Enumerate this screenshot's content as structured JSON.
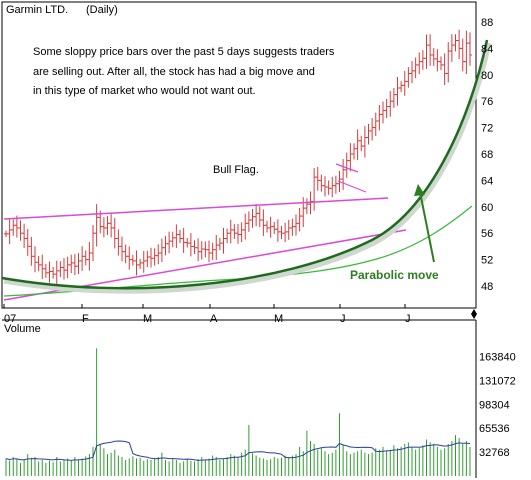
{
  "chart_data": {
    "type": "bar",
    "title": "Garmin LTD.",
    "subtitle": "(Daily)",
    "x_months": [
      "07",
      "F",
      "M",
      "A",
      "M",
      "J",
      "J"
    ],
    "price_ticks": [
      48,
      52,
      56,
      60,
      64,
      68,
      72,
      76,
      80,
      84,
      88
    ],
    "price_ylim": [
      45,
      89
    ],
    "volume_label": "Volume",
    "volume_ticks": [
      32768,
      65536,
      98304,
      131072,
      163840
    ],
    "volume_ylim": [
      0,
      196000
    ],
    "grid": false,
    "annotations": {
      "note_lines": [
        "Some sloppy price bars over the past 5 days suggests traders",
        "are selling out. After all, the stock has had a big move and",
        "in this type of market who would not want out."
      ],
      "bull_flag": "Bull Flag.",
      "parabolic": "Parabolic move"
    },
    "price_bars": [
      55.9,
      56.5,
      57.2,
      56.8,
      56.0,
      55.2,
      54.0,
      52.5,
      51.6,
      51.2,
      50.6,
      50.0,
      50.2,
      49.8,
      50.3,
      50.8,
      50.4,
      51.2,
      51.5,
      51.0,
      51.8,
      52.5,
      52.0,
      53.0,
      56.0,
      58.4,
      57.0,
      56.8,
      57.5,
      56.8,
      55.2,
      54.0,
      53.2,
      52.5,
      52.0,
      51.8,
      51.2,
      51.5,
      51.8,
      52.4,
      52.2,
      52.6,
      53.0,
      53.8,
      54.4,
      54.8,
      55.3,
      55.8,
      55.2,
      54.6,
      54.5,
      54.0,
      53.8,
      53.2,
      53.6,
      53.5,
      53.0,
      53.5,
      54.2,
      54.5,
      55.2,
      56.0,
      56.5,
      56.0,
      55.8,
      56.5,
      57.5,
      58.0,
      58.5,
      59.0,
      58.0,
      57.2,
      56.8,
      57.0,
      56.6,
      56.2,
      56.0,
      56.2,
      56.8,
      57.0,
      57.5,
      58.6,
      59.8,
      60.4,
      60.8,
      64.5,
      64.0,
      63.2,
      63.0,
      62.8,
      63.2,
      63.5,
      64.2,
      65.6,
      67.0,
      68.0,
      68.8,
      70.0,
      69.2,
      70.5,
      71.5,
      72.0,
      73.0,
      74.0,
      74.6,
      75.2,
      76.0,
      77.0,
      78.0,
      78.4,
      79.0,
      80.2,
      80.6,
      81.5,
      82.0,
      82.5,
      84.5,
      83.0,
      82.4,
      82.0,
      81.5,
      80.2,
      83.6,
      84.5,
      85.2,
      84.0,
      82.0,
      84.8,
      83.0
    ],
    "volume_bars": [
      24000,
      21000,
      26000,
      23000,
      18000,
      22000,
      30000,
      25000,
      26000,
      20000,
      22000,
      18000,
      21000,
      19000,
      26000,
      20000,
      23000,
      24000,
      21000,
      26000,
      22000,
      24000,
      27000,
      30000,
      40000,
      175000,
      44000,
      38000,
      30000,
      32000,
      36000,
      28000,
      26000,
      22000,
      24000,
      27000,
      24000,
      25000,
      21000,
      23000,
      22000,
      24000,
      26000,
      32000,
      22000,
      20000,
      24000,
      22000,
      18000,
      20000,
      24000,
      21000,
      20000,
      23000,
      26000,
      22000,
      24000,
      28000,
      26000,
      22000,
      24000,
      26000,
      30000,
      28000,
      26000,
      32000,
      36000,
      70000,
      31000,
      28000,
      25000,
      24000,
      22000,
      23000,
      26000,
      24000,
      25000,
      28000,
      26000,
      28000,
      30000,
      40000,
      34000,
      62000,
      48000,
      44000,
      36000,
      38000,
      34000,
      30000,
      32000,
      36000,
      86000,
      42000,
      34000,
      30000,
      32000,
      34000,
      36000,
      32000,
      30000,
      32000,
      38000,
      36000,
      40000,
      34000,
      36000,
      42000,
      38000,
      40000,
      44000,
      46000,
      40000,
      36000,
      38000,
      42000,
      50000,
      46000,
      44000,
      40000,
      36000,
      38000,
      44000,
      48000,
      56000,
      52000,
      44000,
      48000,
      40000
    ]
  }
}
